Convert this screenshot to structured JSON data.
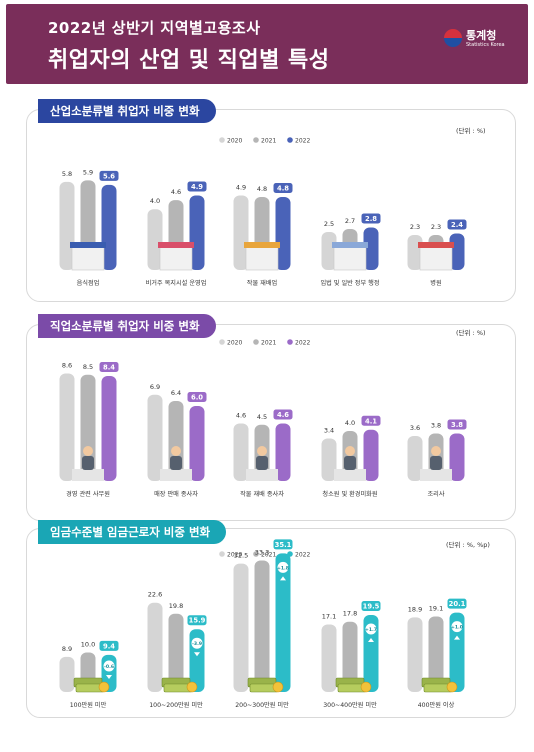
{
  "header": {
    "line1": "2022년 상반기 지역별고용조사",
    "line2": "취업자의 산업 및 직업별 특성",
    "logo_name": "통계청",
    "logo_sub": "Statistics Korea"
  },
  "colors": {
    "header_bg": "#7a2e5a",
    "gray2020": "#d5d5d5",
    "gray2021": "#b5b5b5",
    "blue2022": "#4a63b8",
    "purple2022": "#9b6bc8",
    "teal2022": "#2cbcc8"
  },
  "chart_data": [
    {
      "type": "bar",
      "title": "산업소분류별 취업자 비중 변화",
      "unit": "(단위 : %)",
      "categories": [
        "음식점업",
        "비거주 복지시설 운영업",
        "작물 재배업",
        "입법 및 일반 정부 행정",
        "병원"
      ],
      "series": [
        {
          "name": "2020",
          "values": [
            5.8,
            4.0,
            4.9,
            2.5,
            2.3
          ]
        },
        {
          "name": "2021",
          "values": [
            5.9,
            4.6,
            4.8,
            2.7,
            2.3
          ]
        },
        {
          "name": "2022",
          "values": [
            5.6,
            4.9,
            4.8,
            2.8,
            2.4
          ]
        }
      ],
      "icons": [
        "restaurant-icon",
        "welfare-icon",
        "crop-icon",
        "government-document-icon",
        "hospital-icon"
      ]
    },
    {
      "type": "bar",
      "title": "직업소분류별 취업자 비중 변화",
      "unit": "(단위 : %)",
      "categories": [
        "경영 관련 사무원",
        "매장 판매 종사자",
        "작물 재배 종사자",
        "청소원 및 환경미화원",
        "조리사"
      ],
      "series": [
        {
          "name": "2020",
          "values": [
            8.6,
            6.9,
            4.6,
            3.4,
            3.6
          ]
        },
        {
          "name": "2021",
          "values": [
            8.5,
            6.4,
            4.5,
            4.0,
            3.8
          ]
        },
        {
          "name": "2022",
          "values": [
            8.4,
            6.0,
            4.6,
            4.1,
            3.8
          ]
        }
      ],
      "icons": [
        "office-worker-icon",
        "shop-seller-icon",
        "farmer-icon",
        "cleaner-icon",
        "cook-icon"
      ]
    },
    {
      "type": "bar",
      "title": "임금수준별 임금근로자 비중 변화",
      "unit": "(단위 : %, %p)",
      "categories": [
        "100만원 미만",
        "100~200만원 미만",
        "200~300만원 미만",
        "300~400만원 미만",
        "400만원 이상"
      ],
      "series": [
        {
          "name": "2020",
          "values": [
            8.9,
            22.6,
            32.5,
            17.1,
            18.9
          ]
        },
        {
          "name": "2021",
          "values": [
            10.0,
            19.8,
            33.3,
            17.8,
            19.1
          ]
        },
        {
          "name": "2022",
          "values": [
            9.4,
            15.9,
            35.1,
            19.5,
            20.1
          ]
        }
      ],
      "changes": [
        "-0.6",
        "-3.9",
        "+1.8",
        "+1.7",
        "+1.0"
      ],
      "icons": [
        "money-icon",
        "money-icon",
        "money-icon",
        "money-icon",
        "money-icon"
      ]
    }
  ]
}
